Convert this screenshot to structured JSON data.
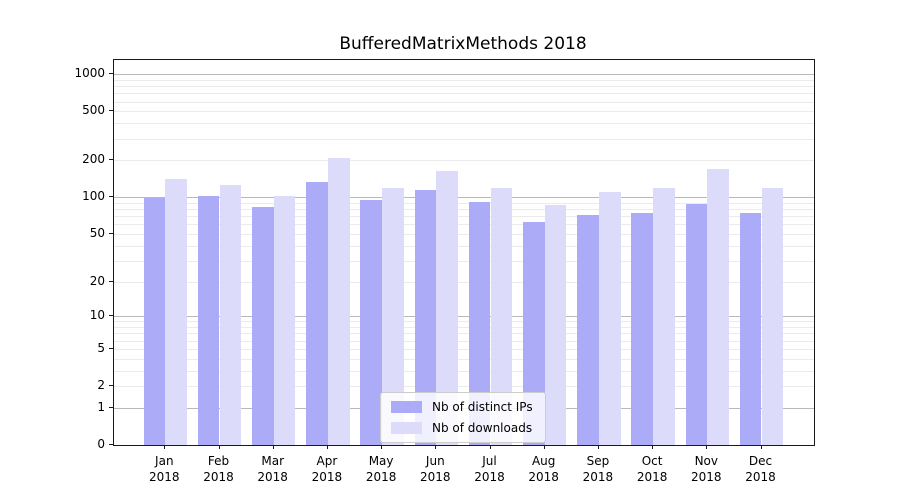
{
  "chart_data": {
    "type": "bar",
    "title": "BufferedMatrixMethods 2018",
    "year_label": "2018",
    "categories": [
      "Jan",
      "Feb",
      "Mar",
      "Apr",
      "May",
      "Jun",
      "Jul",
      "Aug",
      "Sep",
      "Oct",
      "Nov",
      "Dec"
    ],
    "series": [
      {
        "name": "Nb of distinct IPs",
        "color": "#ABABF7",
        "values": [
          98,
          103,
          84,
          132,
          95,
          115,
          91,
          63,
          72,
          75,
          88,
          75
        ]
      },
      {
        "name": "Nb of downloads",
        "color": "#DCDCFA",
        "values": [
          140,
          125,
          102,
          210,
          120,
          165,
          118,
          87,
          111,
          120,
          171,
          118
        ]
      }
    ],
    "xlabel": "",
    "ylabel": "",
    "yscale": "log1p",
    "yticks": [
      0,
      1,
      2,
      5,
      10,
      20,
      50,
      100,
      200,
      500,
      1000
    ],
    "ylim": [
      0,
      1300
    ],
    "grid": "on",
    "grid_major_at": [
      1,
      10,
      100,
      1000
    ],
    "legend_position": "inside-bottom-center",
    "colors": {
      "grid_minor": "#ebebeb",
      "grid_major": "#b9b9b9",
      "spine": "#1a1a1a",
      "background": "#ffffff"
    }
  }
}
